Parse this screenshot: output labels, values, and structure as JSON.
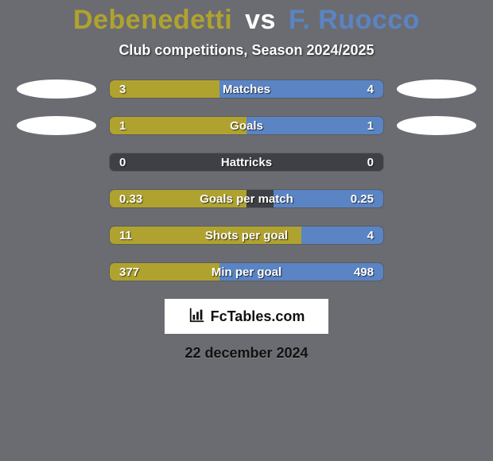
{
  "colors": {
    "background": "#6b6c71",
    "title_p1": "#b0a22f",
    "title_vs": "#ffffff",
    "title_p2": "#5a84c4",
    "bar_empty": "#3f4045",
    "bar_p1": "#b0a22f",
    "bar_p2": "#5a84c4",
    "placeholder": "#ffffff"
  },
  "title": {
    "p1": "Debenedetti",
    "vs": "vs",
    "p2": "F. Ruocco"
  },
  "subtitle": "Club competitions, Season 2024/2025",
  "stats": [
    {
      "label": "Matches",
      "left_val": "3",
      "right_val": "4",
      "left_pct": 40,
      "right_pct": 60,
      "show_placeholder": true
    },
    {
      "label": "Goals",
      "left_val": "1",
      "right_val": "1",
      "left_pct": 50,
      "right_pct": 50,
      "show_placeholder": true
    },
    {
      "label": "Hattricks",
      "left_val": "0",
      "right_val": "0",
      "left_pct": 0,
      "right_pct": 0,
      "show_placeholder": false
    },
    {
      "label": "Goals per match",
      "left_val": "0.33",
      "right_val": "0.25",
      "left_pct": 50,
      "right_pct": 40,
      "show_placeholder": false
    },
    {
      "label": "Shots per goal",
      "left_val": "11",
      "right_val": "4",
      "left_pct": 80,
      "right_pct": 30,
      "show_placeholder": false
    },
    {
      "label": "Min per goal",
      "left_val": "377",
      "right_val": "498",
      "left_pct": 40,
      "right_pct": 60,
      "show_placeholder": false
    }
  ],
  "brand": "FcTables.com",
  "date": "22 december 2024"
}
